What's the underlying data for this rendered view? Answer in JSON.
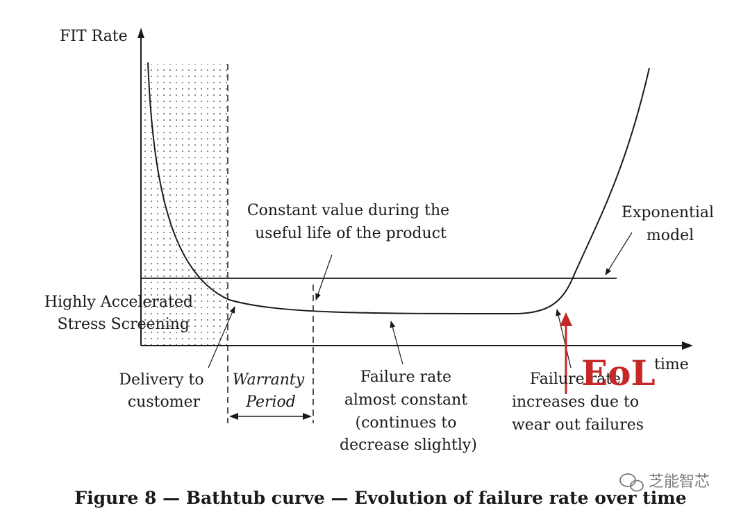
{
  "axis": {
    "y_label": "FIT Rate",
    "x_label": "time"
  },
  "labels": {
    "constant_value": [
      "Constant value during the",
      "useful life of the product"
    ],
    "exponential": [
      "Exponential",
      "model"
    ],
    "hass": [
      "Highly Accelerated",
      "Stress Screening"
    ],
    "delivery": [
      "Delivery to",
      "customer"
    ],
    "warranty": [
      "Warranty",
      "Period"
    ],
    "failure_constant": [
      "Failure rate",
      "almost constant",
      "(continues to",
      "decrease slightly)"
    ],
    "failure_increase": [
      "Failure rate",
      "increases due to",
      "wear out failures"
    ],
    "eol": "EoL"
  },
  "caption": "Figure 8 — Bathtub curve — Evolution of failure rate over time",
  "watermark": "芝能智芯",
  "colors": {
    "eol": "#c62828",
    "ink": "#1a1a1a",
    "watermark": "#7a7a7a"
  }
}
